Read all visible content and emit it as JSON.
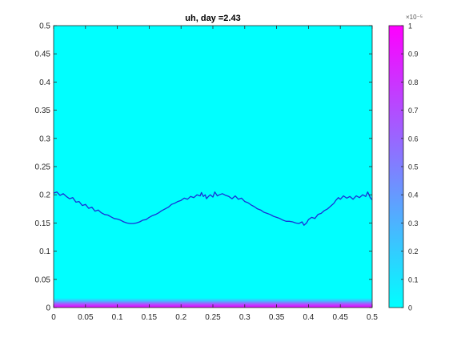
{
  "chart_data": {
    "type": "heatmap",
    "title": "uh, day =2.43",
    "xlabel": "",
    "ylabel": "",
    "xlim": [
      0,
      0.5
    ],
    "ylim": [
      0,
      0.5
    ],
    "x_ticks": [
      0,
      0.05,
      0.1,
      0.15,
      0.2,
      0.25,
      0.3,
      0.35,
      0.4,
      0.45,
      0.5
    ],
    "x_tick_labels": [
      "0",
      "0.05",
      "0.1",
      "0.15",
      "0.2",
      "0.25",
      "0.3",
      "0.35",
      "0.4",
      "0.45",
      "0.5"
    ],
    "y_ticks": [
      0,
      0.05,
      0.1,
      0.15,
      0.2,
      0.25,
      0.3,
      0.35,
      0.4,
      0.45,
      0.5
    ],
    "y_tick_labels": [
      "0",
      "0.05",
      "0.1",
      "0.15",
      "0.2",
      "0.25",
      "0.3",
      "0.35",
      "0.4",
      "0.45",
      "0.5"
    ],
    "field": {
      "colormap": "cool",
      "background_value": 0,
      "high_band": {
        "y_from": 0,
        "y_to": 0.017,
        "value_at_bottom": 1e-05,
        "value_at_top": 0
      }
    },
    "contour": {
      "color": "#1a2fd6",
      "points": [
        [
          0,
          0.203
        ],
        [
          0.005,
          0.205
        ],
        [
          0.01,
          0.199
        ],
        [
          0.015,
          0.202
        ],
        [
          0.02,
          0.197
        ],
        [
          0.025,
          0.193
        ],
        [
          0.03,
          0.195
        ],
        [
          0.035,
          0.187
        ],
        [
          0.04,
          0.188
        ],
        [
          0.045,
          0.181
        ],
        [
          0.05,
          0.183
        ],
        [
          0.055,
          0.176
        ],
        [
          0.06,
          0.178
        ],
        [
          0.065,
          0.171
        ],
        [
          0.07,
          0.173
        ],
        [
          0.075,
          0.168
        ],
        [
          0.08,
          0.165
        ],
        [
          0.085,
          0.164
        ],
        [
          0.09,
          0.161
        ],
        [
          0.095,
          0.158
        ],
        [
          0.1,
          0.157
        ],
        [
          0.105,
          0.155
        ],
        [
          0.11,
          0.152
        ],
        [
          0.115,
          0.15
        ],
        [
          0.12,
          0.149
        ],
        [
          0.125,
          0.149
        ],
        [
          0.13,
          0.15
        ],
        [
          0.135,
          0.152
        ],
        [
          0.14,
          0.155
        ],
        [
          0.145,
          0.156
        ],
        [
          0.15,
          0.16
        ],
        [
          0.155,
          0.163
        ],
        [
          0.16,
          0.165
        ],
        [
          0.165,
          0.168
        ],
        [
          0.17,
          0.172
        ],
        [
          0.175,
          0.175
        ],
        [
          0.18,
          0.178
        ],
        [
          0.185,
          0.183
        ],
        [
          0.19,
          0.185
        ],
        [
          0.195,
          0.188
        ],
        [
          0.2,
          0.19
        ],
        [
          0.205,
          0.194
        ],
        [
          0.21,
          0.192
        ],
        [
          0.215,
          0.197
        ],
        [
          0.22,
          0.195
        ],
        [
          0.225,
          0.2
        ],
        [
          0.23,
          0.198
        ],
        [
          0.232,
          0.204
        ],
        [
          0.235,
          0.197
        ],
        [
          0.238,
          0.2
        ],
        [
          0.24,
          0.193
        ],
        [
          0.243,
          0.197
        ],
        [
          0.246,
          0.2
        ],
        [
          0.25,
          0.196
        ],
        [
          0.253,
          0.205
        ],
        [
          0.257,
          0.198
        ],
        [
          0.26,
          0.2
        ],
        [
          0.265,
          0.202
        ],
        [
          0.27,
          0.199
        ],
        [
          0.275,
          0.197
        ],
        [
          0.28,
          0.193
        ],
        [
          0.285,
          0.198
        ],
        [
          0.29,
          0.192
        ],
        [
          0.295,
          0.194
        ],
        [
          0.3,
          0.188
        ],
        [
          0.305,
          0.186
        ],
        [
          0.31,
          0.182
        ],
        [
          0.315,
          0.179
        ],
        [
          0.32,
          0.175
        ],
        [
          0.325,
          0.173
        ],
        [
          0.33,
          0.169
        ],
        [
          0.335,
          0.167
        ],
        [
          0.34,
          0.165
        ],
        [
          0.345,
          0.162
        ],
        [
          0.35,
          0.16
        ],
        [
          0.355,
          0.158
        ],
        [
          0.36,
          0.155
        ],
        [
          0.365,
          0.153
        ],
        [
          0.37,
          0.153
        ],
        [
          0.375,
          0.152
        ],
        [
          0.38,
          0.15
        ],
        [
          0.385,
          0.149
        ],
        [
          0.39,
          0.152
        ],
        [
          0.393,
          0.146
        ],
        [
          0.397,
          0.15
        ],
        [
          0.4,
          0.156
        ],
        [
          0.405,
          0.16
        ],
        [
          0.41,
          0.158
        ],
        [
          0.415,
          0.165
        ],
        [
          0.42,
          0.167
        ],
        [
          0.425,
          0.172
        ],
        [
          0.43,
          0.175
        ],
        [
          0.435,
          0.18
        ],
        [
          0.44,
          0.185
        ],
        [
          0.443,
          0.19
        ],
        [
          0.447,
          0.195
        ],
        [
          0.45,
          0.192
        ],
        [
          0.455,
          0.198
        ],
        [
          0.46,
          0.194
        ],
        [
          0.465,
          0.197
        ],
        [
          0.47,
          0.192
        ],
        [
          0.475,
          0.198
        ],
        [
          0.48,
          0.195
        ],
        [
          0.485,
          0.2
        ],
        [
          0.49,
          0.197
        ],
        [
          0.493,
          0.205
        ],
        [
          0.497,
          0.195
        ],
        [
          0.5,
          0.191
        ]
      ]
    },
    "colorbar": {
      "min": 0,
      "max": 1,
      "exponent_label": "×10⁻⁵",
      "ticks": [
        0,
        0.1,
        0.2,
        0.3,
        0.4,
        0.5,
        0.6,
        0.7,
        0.8,
        0.9,
        1
      ],
      "tick_labels": [
        "0",
        "0.1",
        "0.2",
        "0.3",
        "0.4",
        "0.5",
        "0.6",
        "0.7",
        "0.8",
        "0.9",
        "1"
      ],
      "colormap": "cool"
    }
  }
}
